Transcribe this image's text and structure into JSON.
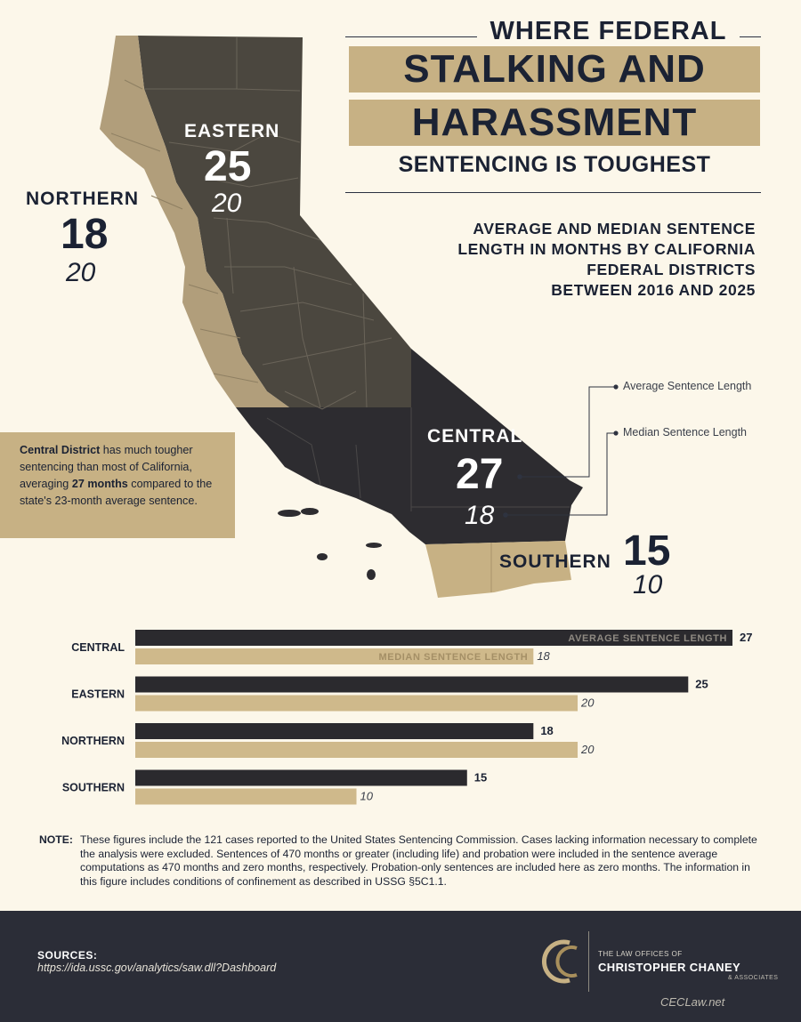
{
  "title": {
    "line1": "WHERE FEDERAL",
    "line2": "STALKING AND",
    "line3": "HARASSMENT",
    "line4": "SENTENCING IS TOUGHEST"
  },
  "subtitle": [
    "AVERAGE AND MEDIAN SENTENCE",
    "LENGTH IN MONTHS BY CALIFORNIA",
    "FEDERAL DISTRICTS",
    "BETWEEN 2016 AND 2025"
  ],
  "legend": {
    "average": "Average Sentence Length",
    "median": "Median Sentence Length"
  },
  "map_labels": {
    "eastern": {
      "name": "EASTERN",
      "avg": "25",
      "median": "20"
    },
    "northern": {
      "name": "NORTHERN",
      "avg": "18",
      "median": "20"
    },
    "central": {
      "name": "CENTRAL",
      "avg": "27",
      "median": "18"
    },
    "southern": {
      "name": "SOUTHERN",
      "avg": "15",
      "median": "10"
    }
  },
  "callout": {
    "strong1": "Central District",
    "text1": " has much tougher sentencing than most of California, averaging ",
    "strong2": "27 months",
    "text2": " compared to the state's 23-month average sentence."
  },
  "chart_data": {
    "type": "bar",
    "orientation": "horizontal",
    "categories": [
      "CENTRAL",
      "EASTERN",
      "NORTHERN",
      "SOUTHERN"
    ],
    "series": [
      {
        "name": "AVERAGE SENTENCE LENGTH",
        "values": [
          27,
          25,
          18,
          15
        ],
        "color": "#2b2a2e"
      },
      {
        "name": "MEDIAN SENTENCE LENGTH",
        "values": [
          18,
          20,
          20,
          10
        ],
        "color": "#cfb98b"
      }
    ],
    "xlim": [
      0,
      27
    ],
    "grid": false,
    "data_labels": true
  },
  "note": {
    "label": "NOTE:",
    "text": "These figures include the 121 cases reported to the United States Sentencing Commission. Cases lacking information necessary to complete the analysis were excluded. Sentences of 470 months or greater (including life) and probation were included in the sentence average computations as 470 months and zero months, respectively. Probation-only sentences are included here as zero months. The information in this figure includes conditions of confinement as described in USSG §5C1.1."
  },
  "footer": {
    "sources_label": "SOURCES:",
    "sources_url": "https://ida.ussc.gov/analytics/saw.dll?Dashboard",
    "logo_line1": "THE LAW OFFICES OF",
    "logo_line2": "CHRISTOPHER CHANEY",
    "logo_line3": "& ASSOCIATES",
    "website": "CECLaw.net"
  },
  "colors": {
    "background": "#fcf7ea",
    "dark": "#2b2a2e",
    "tan": "#c7b184",
    "navy": "#1b2233",
    "footer": "#2b2d37"
  }
}
